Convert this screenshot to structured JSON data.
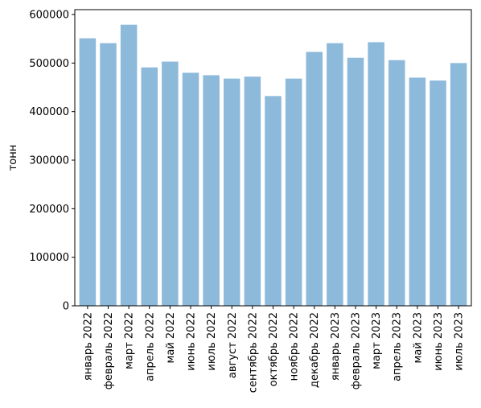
{
  "chart_data": {
    "type": "bar",
    "title": "",
    "xlabel": "",
    "ylabel": "тонн",
    "ylim": [
      0,
      610000
    ],
    "yticks": [
      0,
      100000,
      200000,
      300000,
      400000,
      500000,
      600000
    ],
    "ytick_labels": [
      "0",
      "100000",
      "200000",
      "300000",
      "400000",
      "500000",
      "600000"
    ],
    "grid": false,
    "legend": "none",
    "bar_color": "#8db9da",
    "categories": [
      "январь 2022",
      "февраль 2022",
      "март 2022",
      "апрель 2022",
      "май 2022",
      "июнь 2022",
      "июль 2022",
      "август 2022",
      "сентябрь 2022",
      "октябрь 2022",
      "ноябрь 2022",
      "декабрь 2022",
      "январь 2023",
      "февраль 2023",
      "март 2023",
      "апрель 2023",
      "май 2023",
      "июнь 2023",
      "июль 2023"
    ],
    "values": [
      551000,
      541000,
      579000,
      491000,
      503000,
      480000,
      475000,
      468000,
      472000,
      432000,
      468000,
      523000,
      541000,
      511000,
      543000,
      506000,
      470000,
      464000,
      500000
    ]
  }
}
